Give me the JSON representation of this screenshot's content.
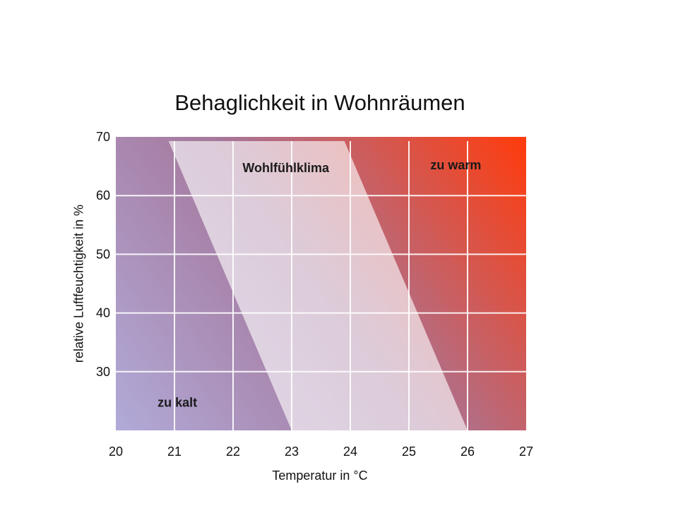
{
  "chart_data": {
    "type": "area",
    "title": "Behaglichkeit in Wohnräumen",
    "xlabel": "Temperatur in °C",
    "ylabel": "relative Luftfeuchtigkeit in %",
    "xlim": [
      20,
      27
    ],
    "ylim": [
      20,
      70
    ],
    "x_ticks": [
      20,
      21,
      22,
      23,
      24,
      25,
      26,
      27
    ],
    "y_ticks": [
      30,
      40,
      50,
      60,
      70
    ],
    "grid": true,
    "comfort_zone": {
      "name": "Wohlfühlklima",
      "points": [
        [
          20.9,
          70
        ],
        [
          23.9,
          70
        ],
        [
          26.0,
          20
        ],
        [
          23.0,
          20
        ]
      ]
    },
    "region_labels": [
      {
        "text": "Wohlfühlklima",
        "x": 22.9,
        "y": 64
      },
      {
        "text": "zu warm",
        "x": 25.8,
        "y": 64.5
      },
      {
        "text": "zu kalt",
        "x": 21.05,
        "y": 24
      }
    ],
    "colors": {
      "cold": "#b1aad8",
      "warm": "#ff3b0c",
      "grid": "#ffffff",
      "zone": "#ffffff"
    }
  }
}
